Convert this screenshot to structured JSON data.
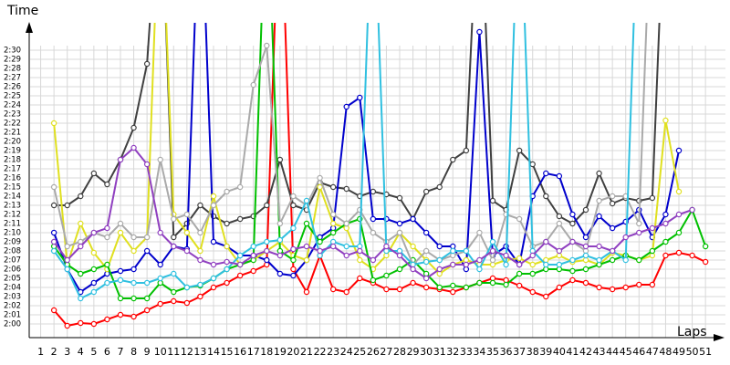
{
  "chart_data": {
    "type": "line",
    "y_label": "Time",
    "x_label": "Laps",
    "x": [
      2,
      3,
      4,
      5,
      6,
      7,
      8,
      9,
      10,
      11,
      12,
      13,
      14,
      15,
      16,
      17,
      18,
      19,
      20,
      21,
      22,
      23,
      24,
      25,
      26,
      27,
      28,
      29,
      30,
      31,
      32,
      33,
      34,
      35,
      36,
      37,
      38,
      39,
      40,
      41,
      42,
      43,
      44,
      45,
      46,
      47,
      48,
      49,
      50,
      51
    ],
    "series": [
      {
        "color": "#ff0000",
        "values": [
          121.5,
          119.8,
          120.1,
          120,
          120.5,
          121,
          120.8,
          121.5,
          122.2,
          122.5,
          122.3,
          123,
          124,
          124.5,
          125.3,
          125.8,
          126.5,
          170,
          126,
          123.5,
          127.5,
          123.8,
          123.5,
          125,
          124.5,
          123.8,
          123.8,
          124.5,
          124,
          123.8,
          123.5,
          124,
          124.5,
          125,
          124.8,
          124.2,
          123.5,
          123,
          124,
          124.8,
          124.5,
          124,
          123.8,
          124,
          124.3,
          124.3,
          127.5,
          127.8,
          127.5,
          126.8
        ]
      },
      {
        "color": "#404040",
        "values": [
          133,
          133,
          134,
          136.5,
          135.3,
          138,
          141.5,
          148.5,
          170,
          129.5,
          131,
          133,
          131.8,
          131,
          131.5,
          131.8,
          133,
          138,
          133,
          132.5,
          135.5,
          135,
          134.8,
          134,
          134.5,
          134.2,
          133.8,
          131.5,
          134.5,
          135,
          138,
          139,
          170,
          133.5,
          132.5,
          139,
          137.5,
          134,
          131.8,
          131,
          132.5,
          136.5,
          133.2,
          133.8,
          133.5,
          133.8,
          170,
          null,
          null,
          null
        ]
      },
      {
        "color": "#0000cc",
        "values": [
          130,
          126,
          123.5,
          124.5,
          125.5,
          125.8,
          126,
          128,
          126.5,
          128.5,
          128.2,
          170,
          129,
          128.5,
          127.5,
          127.5,
          127,
          125.5,
          125.3,
          127,
          129.5,
          130.5,
          143.8,
          144.8,
          131.5,
          131.5,
          131,
          131.5,
          130,
          128.5,
          128.5,
          126,
          152,
          127.5,
          128.5,
          126.5,
          134,
          136.5,
          136.2,
          132,
          129.5,
          131.8,
          130.5,
          131.2,
          132.5,
          129.5,
          132,
          139,
          null,
          null
        ]
      },
      {
        "color": "#e0e020",
        "values": [
          142,
          126.5,
          131,
          127.8,
          126,
          130,
          128,
          129.5,
          170,
          132,
          130,
          128,
          134,
          128.5,
          126.5,
          127,
          128,
          129,
          127.5,
          127,
          135,
          131,
          130.5,
          127,
          126,
          127.5,
          130,
          128.5,
          127,
          125.5,
          126.5,
          127,
          126.5,
          126.5,
          127,
          127.2,
          126.5,
          127,
          127.5,
          126.8,
          127,
          126.5,
          127.8,
          127.5,
          127,
          127.5,
          142.3,
          134.5,
          null,
          null
        ]
      },
      {
        "color": "#00c000",
        "values": [
          128.5,
          126.5,
          125.5,
          126,
          126.5,
          122.8,
          122.8,
          122.8,
          124.5,
          123.5,
          124,
          124.2,
          125,
          126,
          126.5,
          127,
          170,
          128,
          127,
          131,
          129,
          130,
          131,
          131.5,
          124.8,
          125.3,
          126,
          127,
          125.5,
          124,
          124.2,
          124,
          124.5,
          124.5,
          124.3,
          125.5,
          125.5,
          126,
          126,
          125.8,
          126,
          126.5,
          127,
          127.5,
          127,
          128,
          129,
          130,
          132.5,
          128.5
        ]
      },
      {
        "color": "#aaaaaa",
        "values": [
          135,
          128.5,
          129,
          130,
          129.5,
          131,
          129.5,
          129.5,
          138,
          131.5,
          132,
          130,
          133,
          134.5,
          135,
          146.2,
          150.5,
          131,
          134,
          133,
          136,
          132,
          131,
          132.5,
          130,
          129,
          130,
          126.5,
          128,
          127,
          127.5,
          128,
          130,
          127,
          132,
          131.5,
          128.5,
          129,
          131,
          129,
          128,
          133.5,
          134,
          134,
          131,
          170,
          null,
          null,
          null,
          null
        ]
      },
      {
        "color": "#30c0e0",
        "values": [
          128,
          126,
          122.8,
          123.5,
          124.5,
          124.8,
          124.5,
          124.5,
          125,
          125.5,
          124,
          124.3,
          125,
          126,
          127.5,
          128.5,
          129,
          129.2,
          130.5,
          133.5,
          127.5,
          129,
          128.5,
          128.5,
          170,
          128,
          128,
          126.5,
          126.8,
          127,
          128,
          128,
          126,
          129,
          126.5,
          170,
          128,
          126.5,
          126.5,
          127,
          127.5,
          127,
          128,
          127,
          170,
          null,
          null,
          null,
          null,
          null
        ]
      },
      {
        "color": "#9040c0",
        "values": [
          129,
          127,
          128.5,
          130,
          130.5,
          138,
          139.3,
          137.5,
          130,
          128.5,
          128,
          127,
          126.5,
          126.8,
          126.5,
          127.5,
          128,
          127.5,
          128.2,
          128.5,
          128,
          128.5,
          127.5,
          128,
          127,
          128.5,
          127.5,
          126,
          125,
          126,
          126.5,
          126.5,
          127,
          128,
          127.5,
          126.5,
          127.5,
          129,
          128,
          129,
          128.5,
          128.5,
          128,
          129.5,
          130,
          130.5,
          131,
          132,
          132.5,
          null
        ]
      }
    ],
    "xlim": [
      0,
      52.5
    ],
    "xticks": [
      1,
      2,
      3,
      4,
      5,
      6,
      7,
      8,
      9,
      10,
      11,
      12,
      13,
      14,
      15,
      16,
      17,
      18,
      19,
      20,
      21,
      22,
      23,
      24,
      25,
      26,
      27,
      28,
      29,
      30,
      31,
      32,
      33,
      34,
      35,
      36,
      37,
      38,
      39,
      40,
      41,
      42,
      43,
      44,
      45,
      46,
      47,
      48,
      49,
      50,
      51
    ],
    "ylim": [
      118.5,
      153
    ],
    "yticks": [
      {
        "value": 120,
        "label": "2:00"
      },
      {
        "value": 121,
        "label": "2:01"
      },
      {
        "value": 122,
        "label": "2:02"
      },
      {
        "value": 123,
        "label": "2:03"
      },
      {
        "value": 124,
        "label": "2:04"
      },
      {
        "value": 125,
        "label": "2:05"
      },
      {
        "value": 126,
        "label": "2:06"
      },
      {
        "value": 127,
        "label": "2:07"
      },
      {
        "value": 128,
        "label": "2:08"
      },
      {
        "value": 129,
        "label": "2:09"
      },
      {
        "value": 130,
        "label": "2:10"
      },
      {
        "value": 131,
        "label": "2:11"
      },
      {
        "value": 132,
        "label": "2:12"
      },
      {
        "value": 133,
        "label": "2:13"
      },
      {
        "value": 134,
        "label": "2:14"
      },
      {
        "value": 135,
        "label": "2:15"
      },
      {
        "value": 136,
        "label": "2:16"
      },
      {
        "value": 137,
        "label": "2:17"
      },
      {
        "value": 138,
        "label": "2:18"
      },
      {
        "value": 139,
        "label": "2:19"
      },
      {
        "value": 140,
        "label": "2:20"
      },
      {
        "value": 141,
        "label": "2:21"
      },
      {
        "value": 142,
        "label": "2:22"
      },
      {
        "value": 143,
        "label": "2:23"
      },
      {
        "value": 144,
        "label": "2:24"
      },
      {
        "value": 145,
        "label": "2:25"
      },
      {
        "value": 146,
        "label": "2:26"
      },
      {
        "value": 147,
        "label": "2:27"
      },
      {
        "value": 148,
        "label": "2:28"
      },
      {
        "value": 149,
        "label": "2:29"
      },
      {
        "value": 150,
        "label": "2:30"
      }
    ],
    "grid": true
  }
}
